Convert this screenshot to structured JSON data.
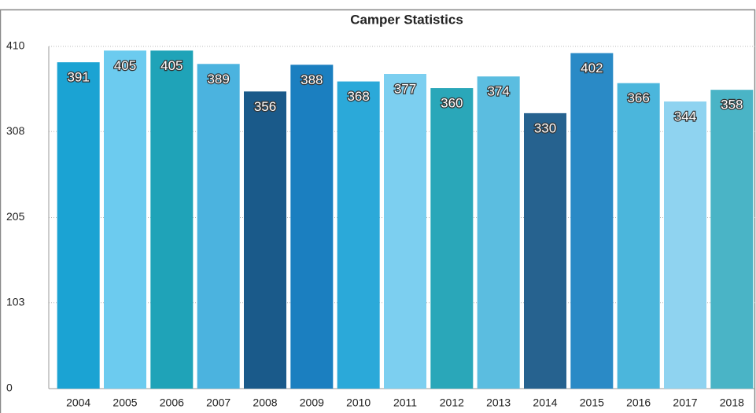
{
  "chart_data": {
    "type": "bar",
    "title": "Camper Statistics",
    "categories": [
      "2004",
      "2005",
      "2006",
      "2007",
      "2008",
      "2009",
      "2010",
      "2011",
      "2012",
      "2013",
      "2014",
      "2015",
      "2016",
      "2017",
      "2018"
    ],
    "values": [
      391,
      405,
      405,
      389,
      356,
      388,
      368,
      377,
      360,
      374,
      330,
      402,
      366,
      344,
      358
    ],
    "colors": [
      "#1ba3d3",
      "#6ccbef",
      "#1fa3b8",
      "#4bb3df",
      "#1a5a8a",
      "#1b7fc0",
      "#2ba9d9",
      "#7ccff0",
      "#2aa7b9",
      "#5bbde0",
      "#26628f",
      "#2a8ac6",
      "#4bb6dc",
      "#8fd3f0",
      "#4ab4c6"
    ],
    "ylim": [
      0,
      410
    ],
    "yticks": [
      0,
      103,
      205,
      308,
      410
    ],
    "grid": true
  }
}
